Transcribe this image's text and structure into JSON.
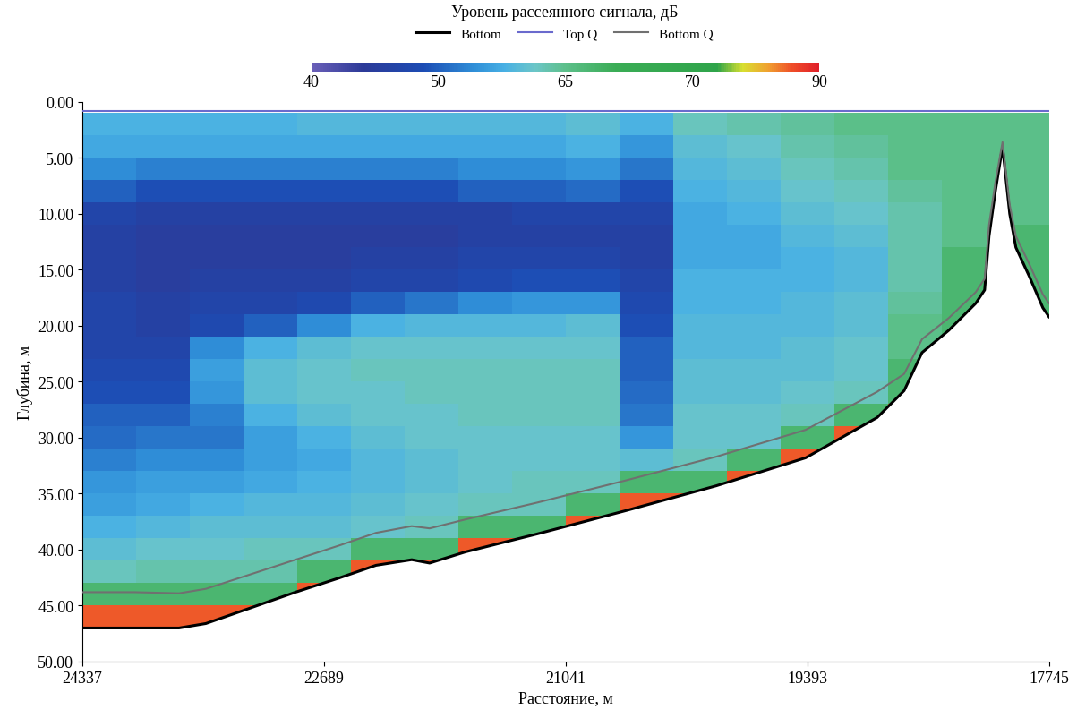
{
  "chart_data": {
    "type": "heatmap",
    "x_label": "Расстояние, м",
    "y_label": "Глубина, м",
    "xlim": [
      24337,
      17745
    ],
    "xticks": [
      24337,
      22689,
      21041,
      19393,
      17745
    ],
    "ylim": [
      50,
      0
    ],
    "yticks": [
      {
        "value": 0,
        "label": "0.00"
      },
      {
        "value": 5,
        "label": "5.00"
      },
      {
        "value": 10,
        "label": "10.00"
      },
      {
        "value": 15,
        "label": "15.00"
      },
      {
        "value": 20,
        "label": "20.00"
      },
      {
        "value": 25,
        "label": "25.00"
      },
      {
        "value": 30,
        "label": "30.00"
      },
      {
        "value": 35,
        "label": "35.00"
      },
      {
        "value": 40,
        "label": "40.00"
      },
      {
        "value": 45,
        "label": "45.00"
      },
      {
        "value": 50,
        "label": "50.00"
      }
    ],
    "grid": false,
    "legend": "upper center",
    "colorbar": {
      "title": "Уровень рассеянного сигнала, дБ",
      "range": [
        40,
        90
      ],
      "ticks": [
        40,
        50,
        65,
        70,
        90
      ]
    },
    "x_edges": [
      24337,
      23971,
      23604,
      23238,
      22872,
      22506,
      22140,
      21773,
      21407,
      21041,
      20675,
      20309,
      19942,
      19576,
      19210,
      18844,
      18478,
      18111,
      17745
    ],
    "y_edges": [
      1,
      3,
      5,
      7,
      9,
      11,
      13,
      15,
      17,
      19,
      21,
      23,
      25,
      27,
      29,
      31,
      33,
      35,
      37,
      39,
      41,
      43,
      45,
      47,
      49
    ],
    "cells": [
      [
        58,
        57,
        54,
        50,
        47,
        46,
        46,
        46,
        47,
        47,
        47,
        48,
        49,
        50,
        51,
        53,
        55,
        56,
        58,
        60,
        62,
        66,
        85,
        null
      ],
      [
        58,
        57,
        53,
        49,
        46,
        45,
        45,
        45,
        46,
        46,
        47,
        48,
        49,
        50,
        52,
        54,
        56,
        57,
        59,
        61,
        63,
        66,
        85,
        null
      ],
      [
        58,
        57,
        53,
        49,
        46,
        45,
        45,
        46,
        47,
        48,
        54,
        56,
        55,
        53,
        52,
        54,
        56,
        58,
        60,
        61,
        63,
        66,
        85,
        null
      ],
      [
        58,
        57,
        53,
        49,
        46,
        45,
        45,
        46,
        47,
        50,
        58,
        60,
        60,
        58,
        56,
        56,
        57,
        59,
        60,
        62,
        63,
        66,
        85,
        null
      ],
      [
        59,
        57,
        53,
        49,
        46,
        45,
        45,
        46,
        48,
        54,
        60,
        61,
        61,
        60,
        58,
        57,
        58,
        59,
        60,
        62,
        66,
        85,
        null,
        null
      ],
      [
        59,
        57,
        53,
        49,
        46,
        45,
        46,
        47,
        50,
        58,
        61,
        62,
        61,
        61,
        60,
        59,
        59,
        60,
        61,
        66,
        85,
        null,
        null,
        null
      ],
      [
        59,
        57,
        53,
        49,
        46,
        45,
        46,
        47,
        52,
        59,
        61,
        62,
        62,
        61,
        61,
        60,
        60,
        61,
        62,
        66,
        85,
        null,
        null,
        null
      ],
      [
        59,
        57,
        54,
        50,
        46,
        46,
        47,
        48,
        54,
        59,
        61,
        62,
        62,
        62,
        61,
        61,
        61,
        62,
        66,
        85,
        null,
        null,
        null,
        null
      ],
      [
        59,
        57,
        54,
        50,
        47,
        46,
        47,
        49,
        55,
        59,
        61,
        62,
        62,
        62,
        61,
        61,
        62,
        62,
        66,
        85,
        null,
        null,
        null,
        null
      ],
      [
        60,
        58,
        55,
        51,
        47,
        46,
        47,
        49,
        55,
        60,
        61,
        62,
        62,
        62,
        61,
        61,
        62,
        66,
        85,
        null,
        null,
        null,
        null,
        null
      ],
      [
        58,
        55,
        52,
        49,
        47,
        46,
        46,
        47,
        48,
        49,
        50,
        50,
        51,
        52,
        55,
        60,
        66,
        85,
        null,
        null,
        null,
        null,
        null,
        null
      ],
      [
        62,
        60,
        59,
        58,
        57,
        57,
        57,
        58,
        58,
        59,
        59,
        60,
        60,
        61,
        61,
        62,
        66,
        85,
        null,
        null,
        null,
        null,
        null,
        null
      ],
      [
        63,
        61,
        60,
        59,
        58,
        57,
        57,
        58,
        58,
        59,
        59,
        60,
        60,
        61,
        61,
        66,
        85,
        null,
        null,
        null,
        null,
        null,
        null,
        null
      ],
      [
        64,
        63,
        62,
        61,
        60,
        59,
        58,
        58,
        59,
        59,
        60,
        60,
        61,
        62,
        66,
        85,
        null,
        null,
        null,
        null,
        null,
        null,
        null,
        null
      ],
      [
        65,
        64,
        63,
        62,
        61,
        60,
        59,
        59,
        60,
        60,
        61,
        61,
        62,
        66,
        85,
        null,
        null,
        null,
        null,
        null,
        null,
        null,
        null,
        null
      ],
      [
        65,
        65,
        65,
        64,
        63,
        63,
        63,
        63,
        64,
        65,
        65,
        66,
        66,
        85,
        null,
        null,
        null,
        null,
        null,
        null,
        null,
        null,
        null,
        null
      ],
      [
        65,
        65,
        65,
        65,
        65,
        65,
        66,
        66,
        66,
        66,
        85,
        null,
        null,
        null,
        null,
        null,
        null,
        null,
        null,
        null,
        null,
        null,
        null,
        null
      ],
      [
        65,
        65,
        65,
        65,
        65,
        66,
        66,
        66,
        66,
        85,
        null,
        null,
        null,
        null,
        null,
        null,
        null,
        null,
        null,
        null,
        null,
        null,
        null,
        null
      ]
    ],
    "series": [
      {
        "name": "Bottom",
        "color": "#000000",
        "x": [
          24337,
          23983,
          23678,
          23495,
          23189,
          22884,
          22579,
          22335,
          22091,
          21969,
          21724,
          21236,
          20626,
          20015,
          19405,
          18917,
          18733,
          18611,
          18428,
          18245,
          18184,
          18154,
          18111,
          18062,
          18013,
          17971,
          17879,
          17787,
          17745
        ],
        "values": [
          47.0,
          47.0,
          47.0,
          46.6,
          45.2,
          43.8,
          42.5,
          41.4,
          40.9,
          41.2,
          40.2,
          38.6,
          36.5,
          34.3,
          31.8,
          28.2,
          25.8,
          22.4,
          20.4,
          18.0,
          16.8,
          12.0,
          8.0,
          4.0,
          10.0,
          13.0,
          15.6,
          18.4,
          19.2
        ]
      },
      {
        "name": "Top Q",
        "color": "#6a6acd",
        "x": [
          24337,
          17745
        ],
        "values": [
          0.8,
          0.8
        ]
      },
      {
        "name": "Bottom Q",
        "color": "#707070",
        "x": [
          24337,
          23983,
          23678,
          23495,
          23189,
          22884,
          22579,
          22335,
          22091,
          21969,
          21724,
          21236,
          20626,
          20015,
          19405,
          18917,
          18733,
          18611,
          18428,
          18245,
          18184,
          18154,
          18111,
          18062,
          18013,
          17971,
          17879,
          17787,
          17745
        ],
        "values": [
          43.8,
          43.8,
          43.9,
          43.5,
          42.2,
          40.9,
          39.6,
          38.5,
          37.9,
          38.1,
          37.3,
          35.8,
          33.8,
          31.7,
          29.3,
          25.9,
          24.3,
          21.2,
          19.3,
          17.0,
          15.8,
          11.0,
          7.2,
          3.6,
          9.2,
          12.0,
          14.5,
          17.2,
          18.0
        ]
      }
    ]
  }
}
